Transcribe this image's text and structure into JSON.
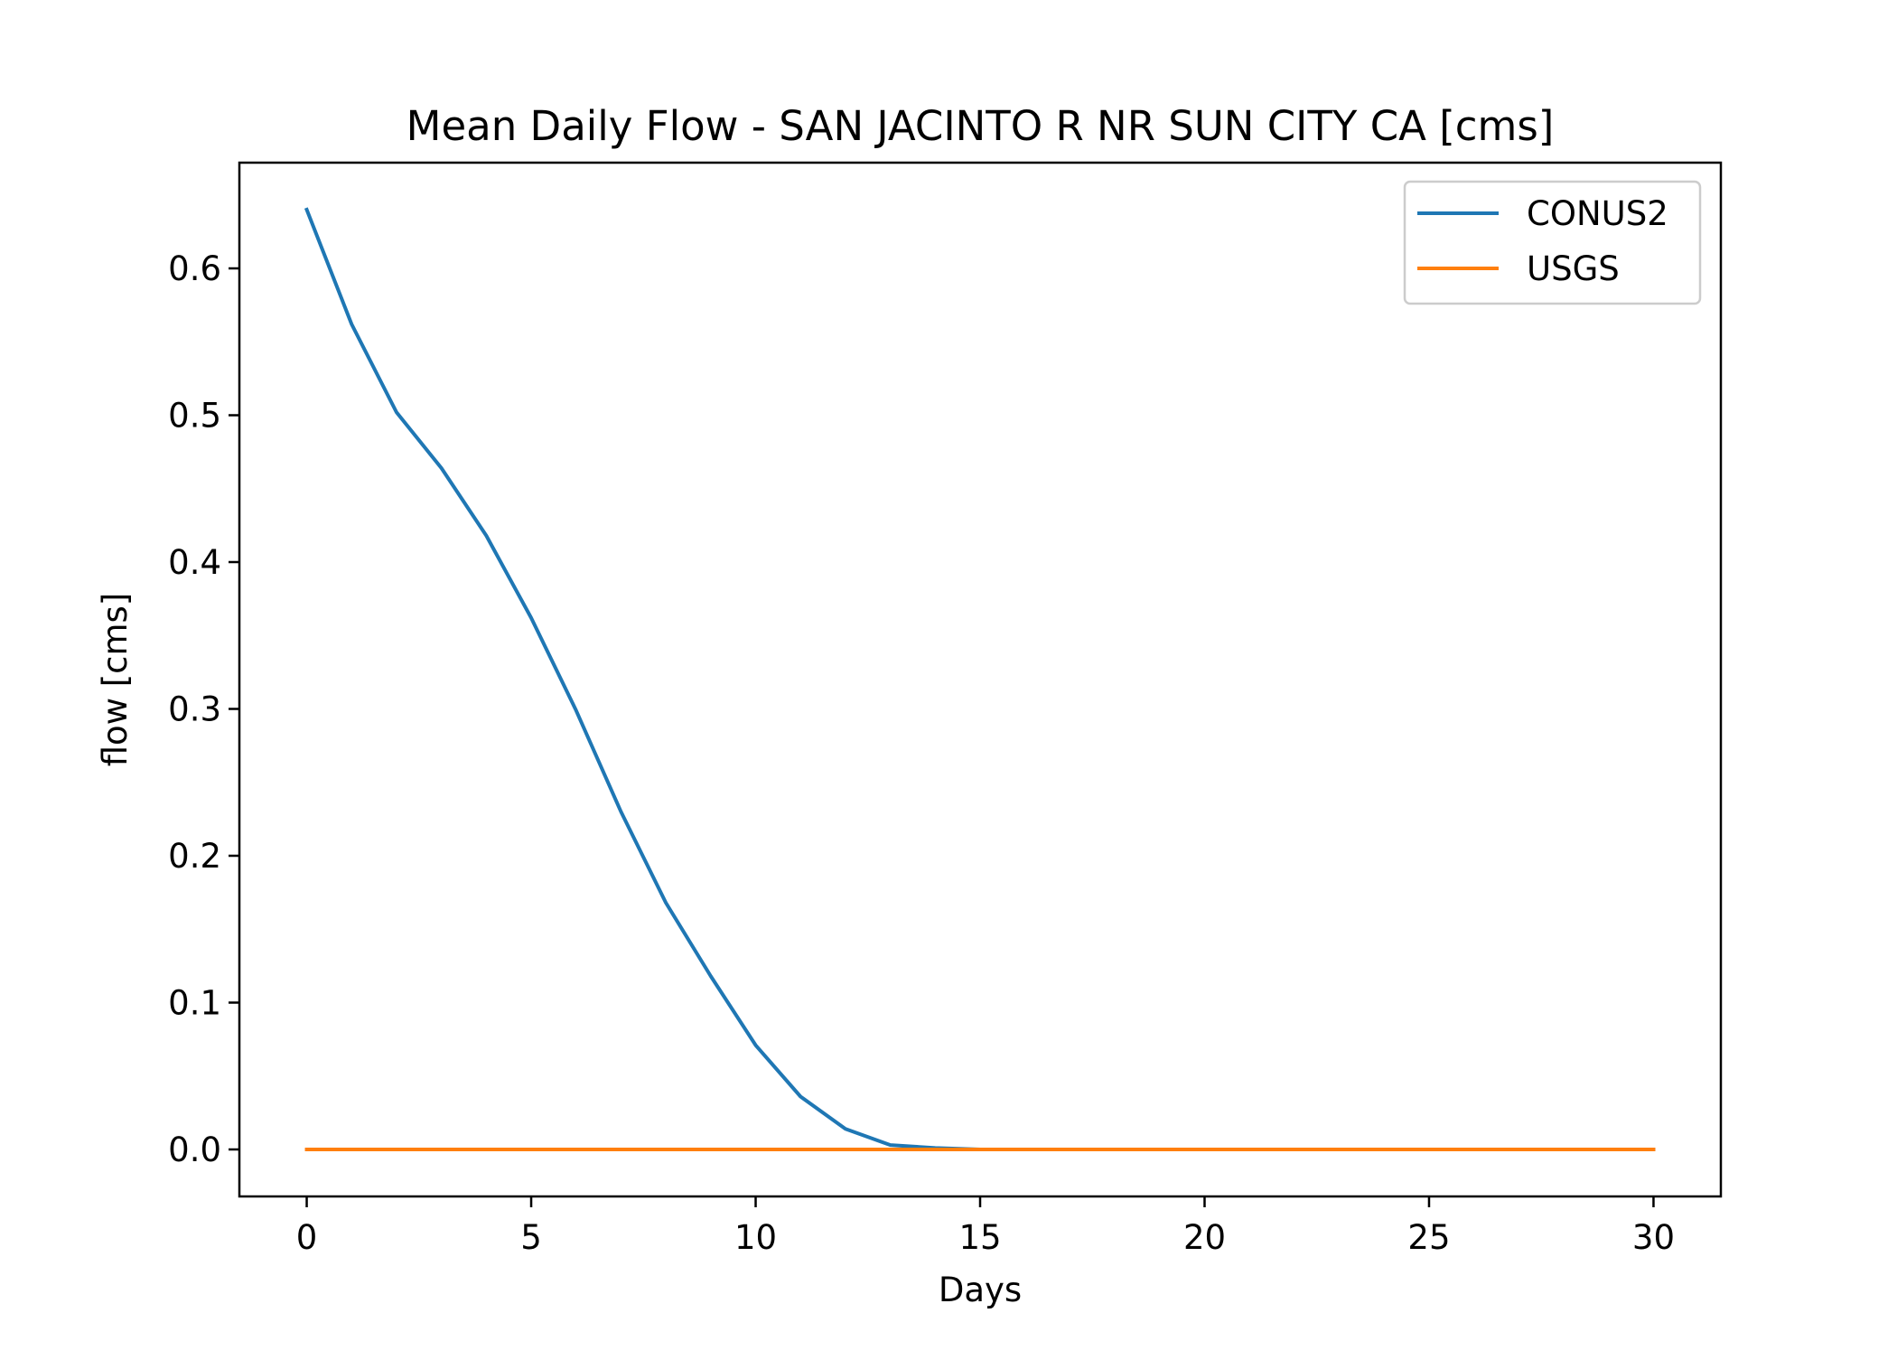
{
  "chart_data": {
    "type": "line",
    "title": "Mean Daily Flow - SAN JACINTO R NR SUN CITY CA [cms]",
    "xlabel": "Days",
    "ylabel": "flow [cms]",
    "xlim": [
      -1.5,
      31.5
    ],
    "ylim": [
      -0.032,
      0.672
    ],
    "xticks": [
      0,
      5,
      10,
      15,
      20,
      25,
      30
    ],
    "xtick_labels": [
      "0",
      "5",
      "10",
      "15",
      "20",
      "25",
      "30"
    ],
    "yticks": [
      0.0,
      0.1,
      0.2,
      0.3,
      0.4,
      0.5,
      0.6
    ],
    "ytick_labels": [
      "0.0",
      "0.1",
      "0.2",
      "0.3",
      "0.4",
      "0.5",
      "0.6"
    ],
    "grid": false,
    "legend_position": "upper right",
    "x": [
      0,
      1,
      2,
      3,
      4,
      5,
      6,
      7,
      8,
      9,
      10,
      11,
      12,
      13,
      14,
      15,
      16,
      17,
      18,
      19,
      20,
      21,
      22,
      23,
      24,
      25,
      26,
      27,
      28,
      29,
      30
    ],
    "series": [
      {
        "name": "CONUS2",
        "color": "#1f77b4",
        "values": [
          0.64,
          0.562,
          0.502,
          0.464,
          0.418,
          0.362,
          0.299,
          0.23,
          0.168,
          0.118,
          0.071,
          0.036,
          0.014,
          0.003,
          0.001,
          0.0,
          0.0,
          0.0,
          0.0,
          0.0,
          0.0,
          0.0,
          0.0,
          0.0,
          0.0,
          0.0,
          0.0,
          0.0,
          0.0,
          0.0,
          0.0
        ]
      },
      {
        "name": "USGS",
        "color": "#ff7f0e",
        "values": [
          0.0,
          0.0,
          0.0,
          0.0,
          0.0,
          0.0,
          0.0,
          0.0,
          0.0,
          0.0,
          0.0,
          0.0,
          0.0,
          0.0,
          0.0,
          0.0,
          0.0,
          0.0,
          0.0,
          0.0,
          0.0,
          0.0,
          0.0,
          0.0,
          0.0,
          0.0,
          0.0,
          0.0,
          0.0,
          0.0,
          0.0
        ]
      }
    ]
  }
}
